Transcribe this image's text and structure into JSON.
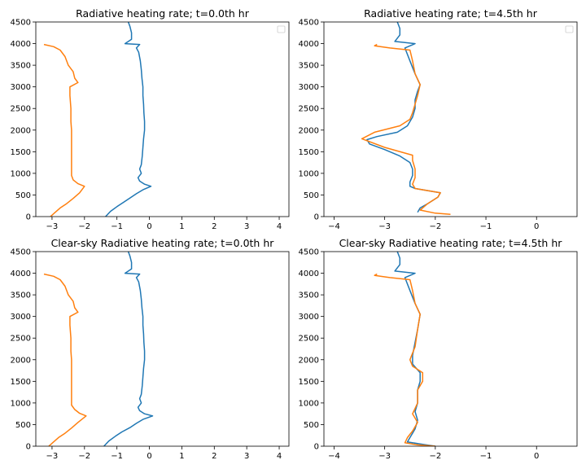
{
  "chart_data": [
    {
      "type": "line",
      "title": "Radiative heating rate; t=0.0th hr",
      "xlim": [
        -3.5,
        4.3
      ],
      "ylim": [
        0,
        4500
      ],
      "xticks": [
        -3,
        -2,
        -1,
        0,
        1,
        2,
        3,
        4
      ],
      "yticks": [
        0,
        500,
        1000,
        1500,
        2000,
        2500,
        3000,
        3500,
        4000,
        4500
      ],
      "legend": "top-right (empty)",
      "series": [
        {
          "color": "#1f77b4",
          "points": [
            [
              -1.35,
              0
            ],
            [
              -1.2,
              120
            ],
            [
              -1.0,
              230
            ],
            [
              -0.8,
              330
            ],
            [
              -0.6,
              430
            ],
            [
              -0.4,
              530
            ],
            [
              -0.2,
              620
            ],
            [
              0.05,
              700
            ],
            [
              -0.15,
              750
            ],
            [
              -0.3,
              820
            ],
            [
              -0.35,
              900
            ],
            [
              -0.25,
              1000
            ],
            [
              -0.3,
              1100
            ],
            [
              -0.25,
              1200
            ],
            [
              -0.22,
              1400
            ],
            [
              -0.2,
              1600
            ],
            [
              -0.18,
              1800
            ],
            [
              -0.15,
              2000
            ],
            [
              -0.15,
              2200
            ],
            [
              -0.17,
              2400
            ],
            [
              -0.18,
              2600
            ],
            [
              -0.2,
              2800
            ],
            [
              -0.2,
              3000
            ],
            [
              -0.23,
              3200
            ],
            [
              -0.25,
              3400
            ],
            [
              -0.28,
              3600
            ],
            [
              -0.33,
              3800
            ],
            [
              -0.4,
              3900
            ],
            [
              -0.3,
              3980
            ],
            [
              -0.75,
              4000
            ],
            [
              -0.55,
              4100
            ],
            [
              -0.55,
              4250
            ],
            [
              -0.6,
              4400
            ],
            [
              -0.65,
              4500
            ]
          ]
        },
        {
          "color": "#ff7f0e",
          "points": [
            [
              -3.05,
              0
            ],
            [
              -2.9,
              100
            ],
            [
              -2.75,
              200
            ],
            [
              -2.55,
              300
            ],
            [
              -2.35,
              420
            ],
            [
              -2.15,
              550
            ],
            [
              -2.0,
              700
            ],
            [
              -2.2,
              760
            ],
            [
              -2.35,
              850
            ],
            [
              -2.4,
              950
            ],
            [
              -2.4,
              1100
            ],
            [
              -2.4,
              1400
            ],
            [
              -2.4,
              1700
            ],
            [
              -2.4,
              2000
            ],
            [
              -2.42,
              2200
            ],
            [
              -2.42,
              2500
            ],
            [
              -2.45,
              2800
            ],
            [
              -2.45,
              3000
            ],
            [
              -2.2,
              3100
            ],
            [
              -2.3,
              3200
            ],
            [
              -2.35,
              3350
            ],
            [
              -2.5,
              3500
            ],
            [
              -2.6,
              3700
            ],
            [
              -2.75,
              3850
            ],
            [
              -2.95,
              3930
            ],
            [
              -3.25,
              3980
            ]
          ]
        }
      ]
    },
    {
      "type": "line",
      "title": "Radiative heating rate; t=4.5th hr",
      "xlim": [
        -4.2,
        0.8
      ],
      "ylim": [
        0,
        4500
      ],
      "xticks": [
        -4,
        -3,
        -2,
        -1,
        0
      ],
      "yticks": [
        0,
        500,
        1000,
        1500,
        2000,
        2500,
        3000,
        3500,
        4000,
        4500
      ],
      "legend": "top-right (empty)",
      "series": [
        {
          "color": "#1f77b4",
          "points": [
            [
              -2.35,
              100
            ],
            [
              -2.3,
              200
            ],
            [
              -2.15,
              300
            ],
            [
              -1.95,
              450
            ],
            [
              -1.9,
              550
            ],
            [
              -2.15,
              600
            ],
            [
              -2.4,
              650
            ],
            [
              -2.5,
              700
            ],
            [
              -2.5,
              800
            ],
            [
              -2.45,
              950
            ],
            [
              -2.45,
              1100
            ],
            [
              -2.5,
              1250
            ],
            [
              -2.7,
              1400
            ],
            [
              -3.0,
              1550
            ],
            [
              -3.3,
              1680
            ],
            [
              -3.35,
              1780
            ],
            [
              -3.15,
              1850
            ],
            [
              -2.75,
              1950
            ],
            [
              -2.55,
              2100
            ],
            [
              -2.45,
              2300
            ],
            [
              -2.4,
              2500
            ],
            [
              -2.4,
              2700
            ],
            [
              -2.35,
              2900
            ],
            [
              -2.3,
              3050
            ],
            [
              -2.4,
              3300
            ],
            [
              -2.5,
              3600
            ],
            [
              -2.6,
              3900
            ],
            [
              -2.4,
              4000
            ],
            [
              -2.8,
              4050
            ],
            [
              -2.7,
              4200
            ],
            [
              -2.7,
              4350
            ],
            [
              -2.75,
              4500
            ]
          ]
        },
        {
          "color": "#ff7f0e",
          "points": [
            [
              -1.7,
              50
            ],
            [
              -2.0,
              80
            ],
            [
              -2.3,
              150
            ],
            [
              -2.15,
              300
            ],
            [
              -1.95,
              450
            ],
            [
              -1.9,
              550
            ],
            [
              -2.4,
              650
            ],
            [
              -2.45,
              750
            ],
            [
              -2.4,
              900
            ],
            [
              -2.4,
              1100
            ],
            [
              -2.45,
              1300
            ],
            [
              -2.45,
              1420
            ],
            [
              -3.0,
              1600
            ],
            [
              -3.45,
              1800
            ],
            [
              -3.2,
              1950
            ],
            [
              -2.7,
              2100
            ],
            [
              -2.5,
              2250
            ],
            [
              -2.45,
              2400
            ],
            [
              -2.4,
              2600
            ],
            [
              -2.35,
              2800
            ],
            [
              -2.3,
              3050
            ],
            [
              -2.4,
              3300
            ],
            [
              -2.45,
              3600
            ],
            [
              -2.5,
              3850
            ],
            [
              -2.9,
              3900
            ],
            [
              -3.2,
              3950
            ],
            [
              -3.15,
              3980
            ]
          ]
        }
      ]
    },
    {
      "type": "line",
      "title": "Clear-sky Radiative heating rate; t=0.0th hr",
      "xlim": [
        -3.5,
        4.3
      ],
      "ylim": [
        0,
        4500
      ],
      "xticks": [
        -3,
        -2,
        -1,
        0,
        1,
        2,
        3,
        4
      ],
      "yticks": [
        0,
        500,
        1000,
        1500,
        2000,
        2500,
        3000,
        3500,
        4000,
        4500
      ],
      "series": [
        {
          "color": "#1f77b4",
          "points": [
            [
              -1.4,
              0
            ],
            [
              -1.25,
              120
            ],
            [
              -1.05,
              230
            ],
            [
              -0.85,
              330
            ],
            [
              -0.6,
              430
            ],
            [
              -0.4,
              530
            ],
            [
              -0.2,
              620
            ],
            [
              0.1,
              700
            ],
            [
              -0.15,
              750
            ],
            [
              -0.3,
              820
            ],
            [
              -0.35,
              900
            ],
            [
              -0.25,
              1000
            ],
            [
              -0.3,
              1100
            ],
            [
              -0.25,
              1200
            ],
            [
              -0.22,
              1400
            ],
            [
              -0.2,
              1600
            ],
            [
              -0.18,
              1800
            ],
            [
              -0.15,
              2000
            ],
            [
              -0.15,
              2200
            ],
            [
              -0.17,
              2400
            ],
            [
              -0.18,
              2600
            ],
            [
              -0.2,
              2800
            ],
            [
              -0.2,
              3000
            ],
            [
              -0.23,
              3200
            ],
            [
              -0.25,
              3400
            ],
            [
              -0.28,
              3600
            ],
            [
              -0.33,
              3800
            ],
            [
              -0.4,
              3900
            ],
            [
              -0.3,
              3980
            ],
            [
              -0.75,
              4000
            ],
            [
              -0.55,
              4100
            ],
            [
              -0.55,
              4250
            ],
            [
              -0.6,
              4400
            ],
            [
              -0.65,
              4500
            ]
          ]
        },
        {
          "color": "#ff7f0e",
          "points": [
            [
              -3.1,
              0
            ],
            [
              -2.95,
              100
            ],
            [
              -2.8,
              200
            ],
            [
              -2.6,
              300
            ],
            [
              -2.4,
              420
            ],
            [
              -2.2,
              550
            ],
            [
              -1.95,
              700
            ],
            [
              -2.15,
              760
            ],
            [
              -2.3,
              850
            ],
            [
              -2.4,
              950
            ],
            [
              -2.4,
              1100
            ],
            [
              -2.4,
              1400
            ],
            [
              -2.4,
              1700
            ],
            [
              -2.4,
              2000
            ],
            [
              -2.42,
              2200
            ],
            [
              -2.42,
              2500
            ],
            [
              -2.45,
              2800
            ],
            [
              -2.45,
              3000
            ],
            [
              -2.2,
              3100
            ],
            [
              -2.3,
              3200
            ],
            [
              -2.35,
              3350
            ],
            [
              -2.5,
              3500
            ],
            [
              -2.6,
              3700
            ],
            [
              -2.75,
              3850
            ],
            [
              -2.95,
              3930
            ],
            [
              -3.25,
              3980
            ]
          ]
        }
      ]
    },
    {
      "type": "line",
      "title": "Clear-sky Radiative heating rate; t=4.5th hr",
      "xlim": [
        -4.2,
        0.8
      ],
      "ylim": [
        0,
        4500
      ],
      "xticks": [
        -4,
        -3,
        -2,
        -1,
        0
      ],
      "yticks": [
        0,
        500,
        1000,
        1500,
        2000,
        2500,
        3000,
        3500,
        4000,
        4500
      ],
      "series": [
        {
          "color": "#1f77b4",
          "points": [
            [
              -2.0,
              0
            ],
            [
              -2.3,
              50
            ],
            [
              -2.55,
              100
            ],
            [
              -2.5,
              200
            ],
            [
              -2.4,
              400
            ],
            [
              -2.35,
              600
            ],
            [
              -2.4,
              800
            ],
            [
              -2.35,
              1000
            ],
            [
              -2.35,
              1300
            ],
            [
              -2.3,
              1500
            ],
            [
              -2.3,
              1700
            ],
            [
              -2.45,
              1900
            ],
            [
              -2.45,
              2100
            ],
            [
              -2.4,
              2400
            ],
            [
              -2.35,
              2700
            ],
            [
              -2.3,
              3050
            ],
            [
              -2.4,
              3300
            ],
            [
              -2.5,
              3600
            ],
            [
              -2.6,
              3900
            ],
            [
              -2.4,
              4000
            ],
            [
              -2.8,
              4050
            ],
            [
              -2.7,
              4200
            ],
            [
              -2.7,
              4350
            ],
            [
              -2.75,
              4500
            ]
          ]
        },
        {
          "color": "#ff7f0e",
          "points": [
            [
              -2.0,
              0
            ],
            [
              -2.35,
              30
            ],
            [
              -2.6,
              80
            ],
            [
              -2.55,
              200
            ],
            [
              -2.45,
              350
            ],
            [
              -2.35,
              550
            ],
            [
              -2.45,
              750
            ],
            [
              -2.35,
              1000
            ],
            [
              -2.35,
              1300
            ],
            [
              -2.25,
              1500
            ],
            [
              -2.25,
              1700
            ],
            [
              -2.45,
              1850
            ],
            [
              -2.5,
              2000
            ],
            [
              -2.4,
              2300
            ],
            [
              -2.35,
              2700
            ],
            [
              -2.3,
              3050
            ],
            [
              -2.4,
              3300
            ],
            [
              -2.45,
              3600
            ],
            [
              -2.5,
              3850
            ],
            [
              -2.9,
              3900
            ],
            [
              -3.2,
              3950
            ],
            [
              -3.15,
              3980
            ]
          ]
        }
      ]
    }
  ]
}
